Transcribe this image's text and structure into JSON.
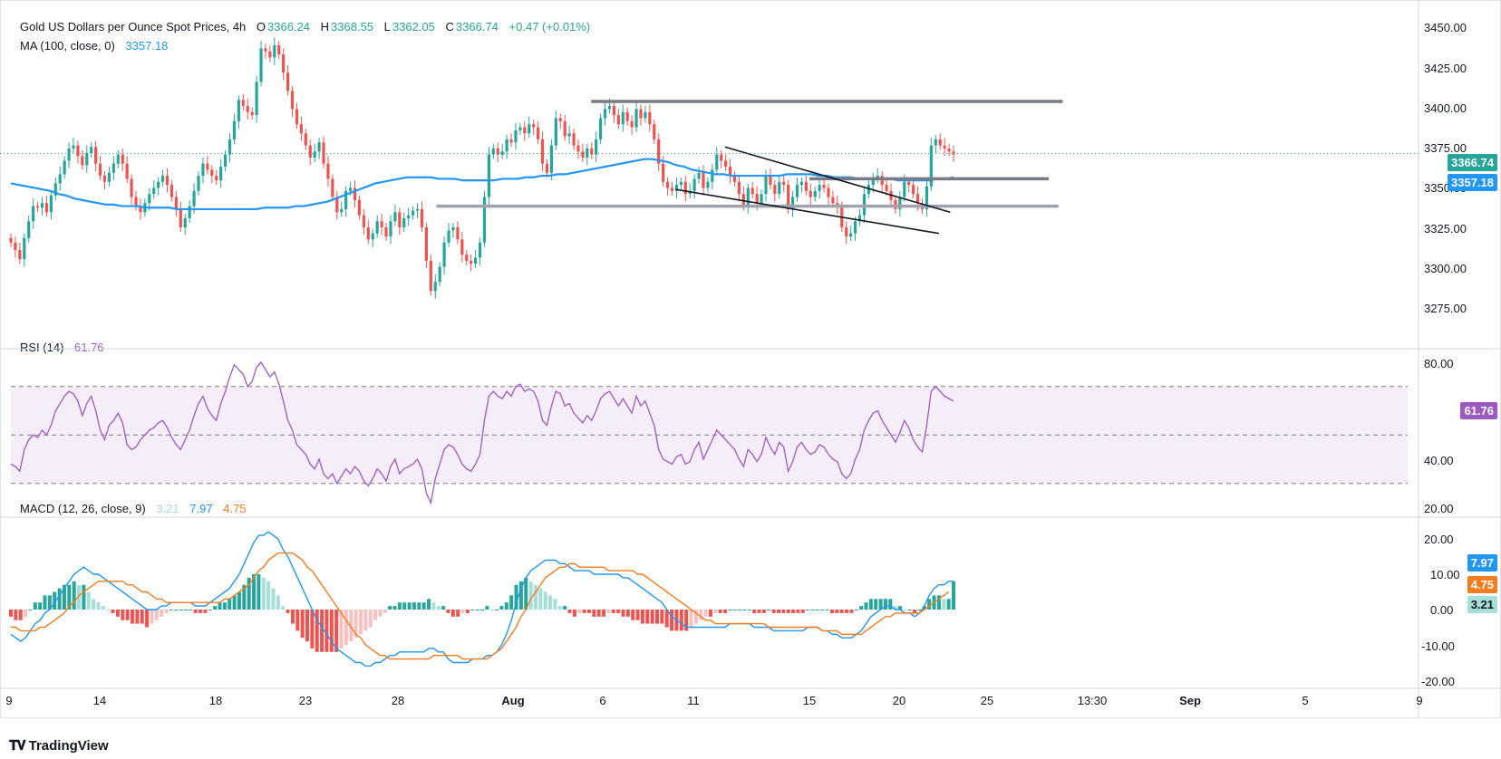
{
  "header": {
    "title": "Gold US Dollars per Ounce Spot Prices, 4h",
    "o_label": "O",
    "o_value": "3366.24",
    "h_label": "H",
    "h_value": "3368.55",
    "l_label": "L",
    "l_value": "3362.05",
    "c_label": "C",
    "c_value": "3366.74",
    "change": "+0.47 (+0.01%)"
  },
  "ma_legend": {
    "label": "MA (100, close, 0)",
    "value": "3357.18"
  },
  "rsi_legend": {
    "label": "RSI (14)",
    "value": "61.76"
  },
  "macd_legend": {
    "label": "MACD (12, 26, close, 9)",
    "hist": "3.21",
    "macd": "7.97",
    "signal": "4.75"
  },
  "price_axis": [
    "3450.00",
    "3425.00",
    "3400.00",
    "3375.00",
    "3350.00",
    "3325.00",
    "3300.00",
    "3275.00"
  ],
  "rsi_axis": [
    "80.00",
    "40.00",
    "20.00"
  ],
  "macd_axis": [
    "20.00",
    "10.00",
    "0.00",
    "-10.00",
    "-20.00"
  ],
  "x_axis": [
    "9",
    "14",
    "18",
    "23",
    "28",
    "Aug",
    "6",
    "11",
    "15",
    "20",
    "25",
    "13:30",
    "Sep",
    "5",
    "9"
  ],
  "pills": {
    "price": "3366.74",
    "ma": "3357.18",
    "rsi": "61.76",
    "macd": "7.97",
    "signal": "4.75",
    "hist": "3.21"
  },
  "colors": {
    "up": "#26a69a",
    "down": "#ef5350",
    "ma": "#2196f3",
    "rsi": "#9c59c2",
    "macd": "#2196f3",
    "signal": "#f57c1f",
    "hist_up": "#26a69a",
    "hist_up_light": "#a5dfd7",
    "hist_down": "#ef5350",
    "hist_down_light": "#f8c1c0"
  },
  "footer": {
    "brand": "TradingView"
  },
  "chart_data": [
    {
      "type": "candlestick",
      "title": "Gold US Dollars per Ounce Spot Prices, 4h",
      "ylim": [
        3260,
        3455
      ],
      "x_ticks": [
        "9",
        "14",
        "18",
        "23",
        "28",
        "Aug",
        "6",
        "11",
        "15",
        "20",
        "25",
        "13:30",
        "Sep",
        "5",
        "9"
      ],
      "close": [
        3308,
        3303,
        3297,
        3311,
        3322,
        3332,
        3331,
        3334,
        3328,
        3339,
        3347,
        3353,
        3362,
        3370,
        3372,
        3365,
        3359,
        3367,
        3371,
        3360,
        3352,
        3348,
        3354,
        3360,
        3366,
        3360,
        3350,
        3338,
        3332,
        3328,
        3334,
        3340,
        3344,
        3348,
        3352,
        3346,
        3338,
        3330,
        3318,
        3324,
        3332,
        3342,
        3352,
        3360,
        3356,
        3352,
        3349,
        3358,
        3366,
        3376,
        3388,
        3402,
        3398,
        3394,
        3392,
        3414,
        3436,
        3434,
        3430,
        3438,
        3432,
        3420,
        3408,
        3396,
        3386,
        3380,
        3372,
        3364,
        3368,
        3374,
        3360,
        3350,
        3338,
        3328,
        3330,
        3342,
        3344,
        3336,
        3326,
        3318,
        3310,
        3314,
        3322,
        3318,
        3312,
        3322,
        3328,
        3318,
        3324,
        3326,
        3329,
        3330,
        3318,
        3296,
        3276,
        3282,
        3292,
        3308,
        3316,
        3318,
        3310,
        3300,
        3296,
        3294,
        3298,
        3308,
        3338,
        3366,
        3370,
        3366,
        3368,
        3376,
        3374,
        3382,
        3384,
        3380,
        3386,
        3384,
        3376,
        3360,
        3354,
        3372,
        3390,
        3388,
        3378,
        3380,
        3372,
        3368,
        3364,
        3370,
        3366,
        3376,
        3390,
        3396,
        3398,
        3392,
        3386,
        3394,
        3388,
        3384,
        3396,
        3390,
        3394,
        3386,
        3376,
        3360,
        3348,
        3344,
        3342,
        3346,
        3348,
        3340,
        3342,
        3350,
        3354,
        3344,
        3348,
        3356,
        3366,
        3362,
        3358,
        3352,
        3348,
        3340,
        3332,
        3344,
        3340,
        3334,
        3340,
        3352,
        3346,
        3340,
        3348,
        3346,
        3330,
        3338,
        3346,
        3348,
        3342,
        3338,
        3342,
        3346,
        3344,
        3338,
        3334,
        3332,
        3318,
        3312,
        3314,
        3322,
        3326,
        3340,
        3346,
        3350,
        3352,
        3346,
        3342,
        3336,
        3330,
        3338,
        3348,
        3346,
        3340,
        3334,
        3330,
        3345,
        3372,
        3376,
        3372,
        3370,
        3368,
        3366
      ],
      "ma100_y": [
        3347,
        3346,
        3345,
        3344,
        3343,
        3342,
        3340,
        3339,
        3337,
        3336,
        3335,
        3334,
        3333,
        3333,
        3332,
        3332,
        3332,
        3331,
        3331,
        3331,
        3331,
        3330,
        3330,
        3330,
        3330,
        3330,
        3330,
        3330,
        3330,
        3330,
        3330,
        3330,
        3331,
        3331,
        3331,
        3331,
        3332,
        3332,
        3333,
        3334,
        3335,
        3337,
        3339,
        3341,
        3343,
        3345,
        3347,
        3348,
        3349,
        3350,
        3351,
        3351,
        3351,
        3351,
        3350,
        3350,
        3350,
        3349,
        3349,
        3349,
        3349,
        3349,
        3350,
        3350,
        3350,
        3351,
        3351,
        3352,
        3352,
        3353,
        3353,
        3354,
        3355,
        3356,
        3357,
        3358,
        3359,
        3360,
        3361,
        3362,
        3363,
        3363,
        3362,
        3361,
        3359,
        3358,
        3356,
        3355,
        3354,
        3353,
        3353,
        3352,
        3352,
        3352,
        3352,
        3352,
        3352,
        3352,
        3353,
        3353,
        3353,
        3353,
        3352,
        3352,
        3351,
        3351,
        3351,
        3350,
        3350,
        3350,
        3350,
        3350,
        3349,
        3349,
        3349,
        3349,
        3349,
        3350,
        3350,
        3351
      ],
      "hlines": [
        {
          "y": 3401,
          "from": 0.42,
          "to": 0.755,
          "color": "#787b86"
        },
        {
          "y": 3350,
          "from": 0.575,
          "to": 0.745,
          "color": "#787b86"
        },
        {
          "y": 3332,
          "from": 0.31,
          "to": 0.752,
          "color": "#a0a3ab"
        }
      ],
      "trendlines": [
        {
          "x1": 0.515,
          "y1": 3371,
          "x2": 0.675,
          "y2": 3328
        },
        {
          "x1": 0.48,
          "y1": 3343,
          "x2": 0.667,
          "y2": 3314
        }
      ],
      "last_price": 3366.74
    },
    {
      "type": "line",
      "title": "RSI (14)",
      "ylim": [
        18,
        88
      ],
      "bands": [
        70,
        50,
        30
      ],
      "values": [
        38,
        37,
        35,
        44,
        48,
        50,
        49,
        52,
        50,
        54,
        60,
        63,
        66,
        68,
        67,
        64,
        58,
        63,
        66,
        60,
        52,
        48,
        54,
        56,
        59,
        55,
        46,
        44,
        45,
        48,
        50,
        52,
        53,
        55,
        56,
        53,
        49,
        46,
        44,
        48,
        52,
        58,
        63,
        66,
        61,
        58,
        56,
        63,
        68,
        74,
        79,
        77,
        75,
        70,
        72,
        78,
        80,
        77,
        74,
        76,
        71,
        64,
        56,
        52,
        46,
        44,
        42,
        38,
        36,
        40,
        34,
        32,
        34,
        30,
        33,
        36,
        34,
        37,
        35,
        31,
        29,
        32,
        36,
        34,
        31,
        37,
        40,
        34,
        36,
        37,
        38,
        40,
        36,
        26,
        22,
        32,
        38,
        44,
        46,
        45,
        42,
        38,
        36,
        35,
        38,
        42,
        56,
        66,
        68,
        66,
        65,
        68,
        66,
        70,
        71,
        68,
        69,
        68,
        64,
        56,
        54,
        62,
        68,
        67,
        62,
        63,
        59,
        57,
        55,
        58,
        56,
        60,
        65,
        67,
        68,
        65,
        62,
        65,
        62,
        59,
        66,
        62,
        64,
        59,
        54,
        44,
        40,
        39,
        38,
        41,
        42,
        38,
        39,
        44,
        47,
        40,
        44,
        48,
        52,
        50,
        48,
        46,
        44,
        40,
        37,
        44,
        42,
        39,
        42,
        49,
        45,
        42,
        47,
        45,
        35,
        39,
        45,
        47,
        44,
        42,
        43,
        46,
        45,
        42,
        40,
        39,
        34,
        32,
        34,
        40,
        44,
        52,
        56,
        59,
        60,
        56,
        53,
        50,
        47,
        51,
        56,
        53,
        48,
        45,
        43,
        54,
        68,
        70,
        68,
        66,
        65,
        64
      ],
      "last": 61.76
    },
    {
      "type": "line",
      "title": "MACD (12, 26, close, 9)",
      "ylim": [
        -22,
        23
      ],
      "macd": [
        -7,
        -8,
        -9,
        -8,
        -6,
        -4,
        -3,
        -1,
        0,
        2,
        4,
        6,
        8,
        10,
        11,
        12,
        11,
        10,
        10,
        9,
        8,
        7,
        6,
        5,
        4,
        3,
        2,
        1,
        0,
        0,
        0,
        1,
        1,
        2,
        2,
        2,
        2,
        2,
        1,
        1,
        1,
        2,
        3,
        4,
        5,
        6,
        8,
        10,
        13,
        16,
        19,
        21,
        21,
        22,
        21,
        20,
        17,
        15,
        12,
        9,
        6,
        3,
        0,
        -3,
        -5,
        -7,
        -9,
        -11,
        -12,
        -13,
        -14,
        -15,
        -15,
        -16,
        -16,
        -15,
        -15,
        -14,
        -13,
        -13,
        -12,
        -12,
        -12,
        -12,
        -12,
        -12,
        -11,
        -11,
        -12,
        -12,
        -14,
        -15,
        -15,
        -15,
        -15,
        -14,
        -14,
        -14,
        -13,
        -13,
        -12,
        -10,
        -7,
        -3,
        2,
        6,
        9,
        11,
        12,
        13,
        14,
        14,
        14,
        13,
        13,
        12,
        11,
        11,
        11,
        11,
        10,
        10,
        10,
        10,
        10,
        10,
        9,
        9,
        8,
        7,
        6,
        5,
        4,
        3,
        2,
        0,
        -2,
        -3,
        -4,
        -5,
        -5,
        -5,
        -5,
        -5,
        -5,
        -5,
        -5,
        -5,
        -4,
        -4,
        -4,
        -4,
        -4,
        -5,
        -5,
        -5,
        -5,
        -6,
        -6,
        -6,
        -6,
        -6,
        -6,
        -6,
        -5,
        -5,
        -5,
        -6,
        -6,
        -7,
        -7,
        -8,
        -8,
        -8,
        -7,
        -6,
        -4,
        -2,
        -1,
        0,
        1,
        1,
        0,
        0,
        -1,
        -1,
        -2,
        -1,
        1,
        4,
        6,
        7,
        7,
        8,
        8
      ],
      "signal": [
        -5,
        -5,
        -6,
        -6,
        -6,
        -6,
        -5,
        -5,
        -4,
        -3,
        -2,
        -1,
        1,
        2,
        4,
        5,
        6,
        7,
        8,
        8,
        8,
        8,
        8,
        8,
        7,
        7,
        6,
        5,
        5,
        4,
        3,
        3,
        2,
        2,
        2,
        2,
        2,
        2,
        2,
        2,
        2,
        2,
        2,
        2,
        3,
        3,
        4,
        5,
        6,
        7,
        9,
        11,
        12,
        14,
        15,
        16,
        16,
        16,
        16,
        15,
        14,
        12,
        11,
        9,
        7,
        5,
        3,
        1,
        -1,
        -3,
        -5,
        -7,
        -8,
        -10,
        -11,
        -12,
        -13,
        -13,
        -14,
        -14,
        -14,
        -14,
        -14,
        -14,
        -14,
        -14,
        -14,
        -13,
        -13,
        -13,
        -13,
        -13,
        -13,
        -14,
        -14,
        -14,
        -14,
        -14,
        -14,
        -13,
        -12,
        -11,
        -9,
        -7,
        -5,
        -2,
        0,
        3,
        5,
        7,
        9,
        10,
        11,
        12,
        12,
        13,
        13,
        12,
        12,
        12,
        12,
        12,
        12,
        11,
        11,
        11,
        11,
        11,
        11,
        10,
        10,
        9,
        8,
        7,
        6,
        5,
        4,
        3,
        2,
        1,
        0,
        -1,
        -2,
        -3,
        -3,
        -4,
        -4,
        -4,
        -4,
        -4,
        -4,
        -4,
        -4,
        -4,
        -4,
        -4,
        -5,
        -5,
        -5,
        -5,
        -5,
        -5,
        -5,
        -5,
        -5,
        -5,
        -5,
        -6,
        -6,
        -6,
        -6,
        -7,
        -7,
        -7,
        -7,
        -7,
        -6,
        -5,
        -4,
        -3,
        -2,
        -2,
        -1,
        -1,
        -1,
        -1,
        -1,
        -1,
        0,
        1,
        2,
        3,
        4,
        5
      ],
      "last_macd": 7.97,
      "last_signal": 4.75,
      "last_hist": 3.21
    }
  ]
}
